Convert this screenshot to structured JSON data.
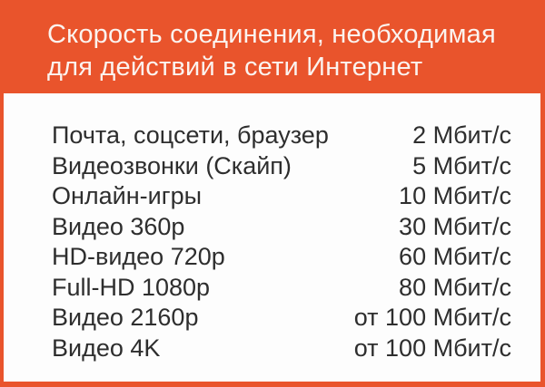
{
  "header": {
    "title_line1": "Скорость соединения, необходимая",
    "title_line2": "для действий в сети Интернет"
  },
  "table": {
    "rows": [
      {
        "label": "Почта, соцсети, браузер",
        "value": "2 Мбит/с"
      },
      {
        "label": "Видеозвонки (Скайп)",
        "value": "5 Мбит/с"
      },
      {
        "label": "Онлайн-игры",
        "value": "10 Мбит/с"
      },
      {
        "label": "Видео 360p",
        "value": "30 Мбит/с"
      },
      {
        "label": "HD-видео 720p",
        "value": "60 Мбит/с"
      },
      {
        "label": "Full-HD 1080p",
        "value": "80 Мбит/с"
      },
      {
        "label": "Видео 2160p",
        "value": "от 100 Мбит/с"
      },
      {
        "label": "Видео 4K",
        "value": "от 100 Мбит/с"
      }
    ]
  },
  "colors": {
    "accent": "#e9542c",
    "header-text": "#fbf3ef",
    "panel-bg": "#fdfdfd",
    "text": "#2e2e2e"
  }
}
